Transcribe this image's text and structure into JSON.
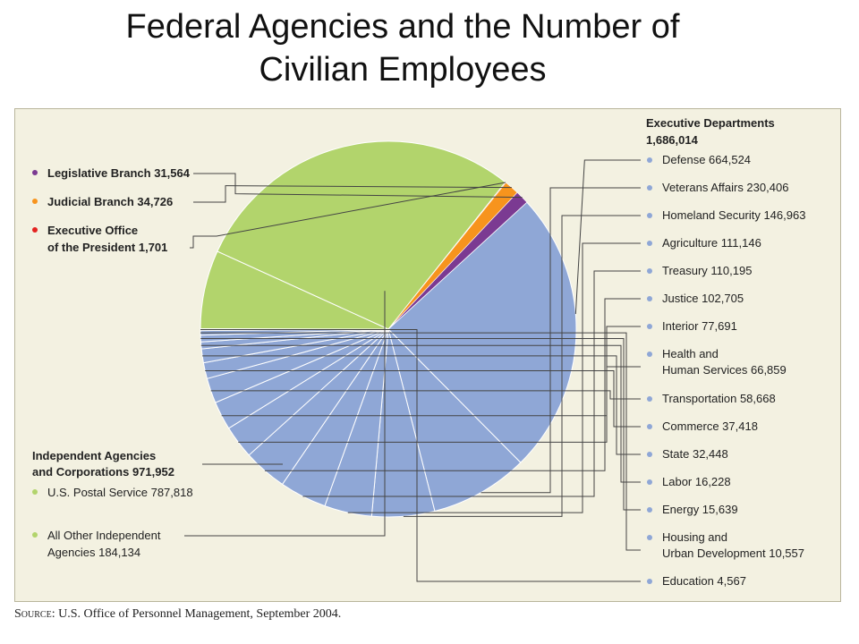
{
  "title": {
    "line1": "Federal Agencies and the Number of",
    "line2": "Civilian Employees"
  },
  "source": {
    "prefix": "Source",
    "text": ": U.S. Office of Personnel Management, September 2004."
  },
  "colors": {
    "executive": "#8fa7d6",
    "independent": "#b2d46c",
    "legislative": "#7b3a92",
    "judicial": "#f7941d",
    "eop": "#e42320",
    "panel": "#f3f1e1",
    "leader": "#444444"
  },
  "chart_data": {
    "type": "pie",
    "title": "Federal Agencies and the Number of Civilian Employees",
    "groups": [
      {
        "key": "executive",
        "label": "Executive Departments",
        "total": "1,686,014",
        "color": "#8fa7d6",
        "items": [
          {
            "name": "Defense",
            "value": 664524,
            "display": "664,524"
          },
          {
            "name": "Veterans Affairs",
            "value": 230406,
            "display": "230,406"
          },
          {
            "name": "Homeland Security",
            "value": 146963,
            "display": "146,963"
          },
          {
            "name": "Agriculture",
            "value": 111146,
            "display": "111,146"
          },
          {
            "name": "Treasury",
            "value": 110195,
            "display": "110,195"
          },
          {
            "name": "Justice",
            "value": 102705,
            "display": "102,705"
          },
          {
            "name": "Interior",
            "value": 77691,
            "display": "77,691"
          },
          {
            "name": "Health and Human Services",
            "line1": "Health and",
            "line2": "Human Services",
            "value": 66859,
            "display": "66,859"
          },
          {
            "name": "Transportation",
            "value": 58668,
            "display": "58,668"
          },
          {
            "name": "Commerce",
            "value": 37418,
            "display": "37,418"
          },
          {
            "name": "State",
            "value": 32448,
            "display": "32,448"
          },
          {
            "name": "Labor",
            "value": 16228,
            "display": "16,228"
          },
          {
            "name": "Energy",
            "value": 15639,
            "display": "15,639"
          },
          {
            "name": "Housing and Urban Development",
            "line1": "Housing and",
            "line2": "Urban Development",
            "value": 10557,
            "display": "10,557"
          },
          {
            "name": "Education",
            "value": 4567,
            "display": "4,567"
          }
        ]
      },
      {
        "key": "independent",
        "label": "Independent Agencies",
        "label2": "and Corporations",
        "total": "971,952",
        "color": "#b2d46c",
        "items": [
          {
            "name": "All Other Independent Agencies",
            "line1": "All Other Independent",
            "line2": "Agencies",
            "value": 184134,
            "display": "184,134"
          },
          {
            "name": "U.S. Postal Service",
            "value": 787818,
            "display": "787,818"
          }
        ]
      },
      {
        "key": "eop",
        "label": "Executive Office",
        "label2": "of the President",
        "value": 1701,
        "display": "1,701",
        "color": "#e42320"
      },
      {
        "key": "judicial",
        "label": "Judicial Branch",
        "value": 34726,
        "display": "34,726",
        "color": "#f7941d"
      },
      {
        "key": "legislative",
        "label": "Legislative Branch",
        "value": 31564,
        "display": "31,564",
        "color": "#7b3a92"
      }
    ]
  }
}
